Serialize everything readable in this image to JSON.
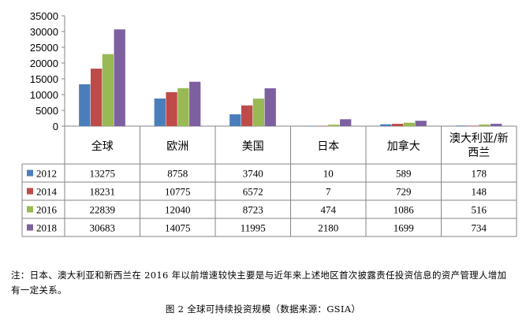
{
  "chart_data": {
    "type": "bar",
    "categories": [
      "全球",
      "欧洲",
      "美国",
      "日本",
      "加拿大",
      "澳大利亚/新西兰"
    ],
    "category_lines": [
      [
        "全球"
      ],
      [
        "欧洲"
      ],
      [
        "美国"
      ],
      [
        "日本"
      ],
      [
        "加拿大"
      ],
      [
        "澳大利亚/新",
        "西兰"
      ]
    ],
    "series": [
      {
        "name": "2012",
        "color": "#4a7ebb",
        "values": [
          13275,
          8758,
          3740,
          10,
          589,
          178
        ]
      },
      {
        "name": "2014",
        "color": "#be4b48",
        "values": [
          18231,
          10775,
          6572,
          7,
          729,
          148
        ]
      },
      {
        "name": "2016",
        "color": "#98b954",
        "values": [
          22839,
          12040,
          8723,
          474,
          1086,
          516
        ]
      },
      {
        "name": "2018",
        "color": "#7d60a0",
        "values": [
          30683,
          14075,
          11995,
          2180,
          1699,
          734
        ]
      }
    ],
    "yticks": [
      0,
      5000,
      10000,
      15000,
      20000,
      25000,
      30000,
      35000
    ],
    "ylim": [
      0,
      35000
    ],
    "legend": "data-table"
  },
  "note": "注：日本、澳大利亚和新西兰在 2016 年以前增速较快主要是与近年来上述地区首次披露责任投资信息的资产管理人增加有一定关系。",
  "caption": "图 2 全球可持续投资规模（数据来源：GSIA）"
}
